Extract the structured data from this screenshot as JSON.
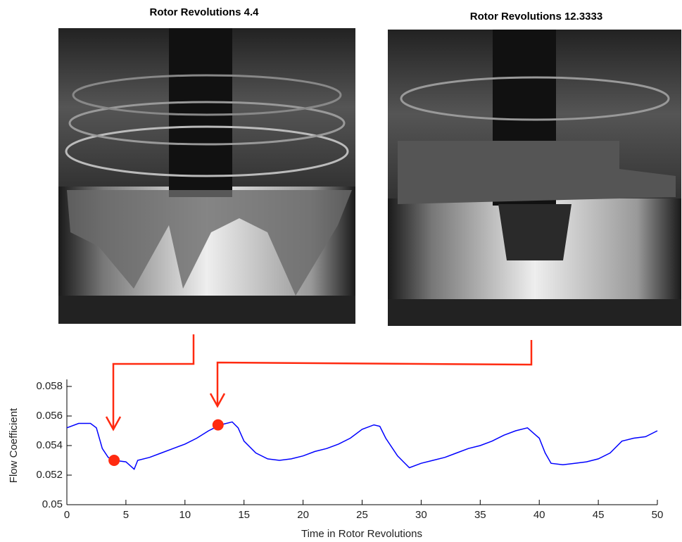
{
  "photos": [
    {
      "title": "Rotor Revolutions 4.4"
    },
    {
      "title": "Rotor Revolutions 12.3333"
    }
  ],
  "chart_data": {
    "type": "line",
    "x_label": "Time in Rotor Revolutions",
    "y_label": "Flow Coefficient",
    "x": [
      0,
      1,
      2,
      2.5,
      3,
      3.5,
      4,
      5,
      5.7,
      6,
      7,
      8,
      9,
      10,
      11,
      12,
      12.5,
      13,
      14,
      14.5,
      15,
      16,
      17,
      18,
      19,
      20,
      21,
      22,
      23,
      24,
      25,
      26,
      26.5,
      27,
      28,
      28.5,
      29,
      30,
      31,
      32,
      33,
      34,
      35,
      36,
      37,
      38,
      39,
      40,
      40.5,
      41,
      42,
      43,
      44,
      45,
      46,
      47,
      48,
      49,
      50
    ],
    "values": [
      0.0552,
      0.0555,
      0.0555,
      0.0552,
      0.0538,
      0.0532,
      0.053,
      0.0529,
      0.0524,
      0.053,
      0.0532,
      0.0535,
      0.0538,
      0.0541,
      0.0545,
      0.055,
      0.0552,
      0.0554,
      0.0556,
      0.0552,
      0.0543,
      0.0535,
      0.0531,
      0.053,
      0.0531,
      0.0533,
      0.0536,
      0.0538,
      0.0541,
      0.0545,
      0.0551,
      0.0554,
      0.0553,
      0.0545,
      0.0533,
      0.0529,
      0.0525,
      0.0528,
      0.053,
      0.0532,
      0.0535,
      0.0538,
      0.054,
      0.0543,
      0.0547,
      0.055,
      0.0552,
      0.0545,
      0.0535,
      0.0528,
      0.0527,
      0.0528,
      0.0529,
      0.0531,
      0.0535,
      0.0543,
      0.0545,
      0.0546,
      0.055
    ],
    "color": "#0000ff",
    "points": {
      "x": [
        4,
        12.8
      ],
      "values": [
        0.053,
        0.0554
      ],
      "color": "#ff2a10"
    },
    "xlim": [
      0,
      50
    ],
    "xticks": [
      0,
      5,
      10,
      15,
      20,
      25,
      30,
      35,
      40,
      45,
      50
    ],
    "ylim": [
      0.05,
      0.058
    ],
    "yticks": [
      0.05,
      0.052,
      0.054,
      0.056,
      0.058
    ]
  }
}
